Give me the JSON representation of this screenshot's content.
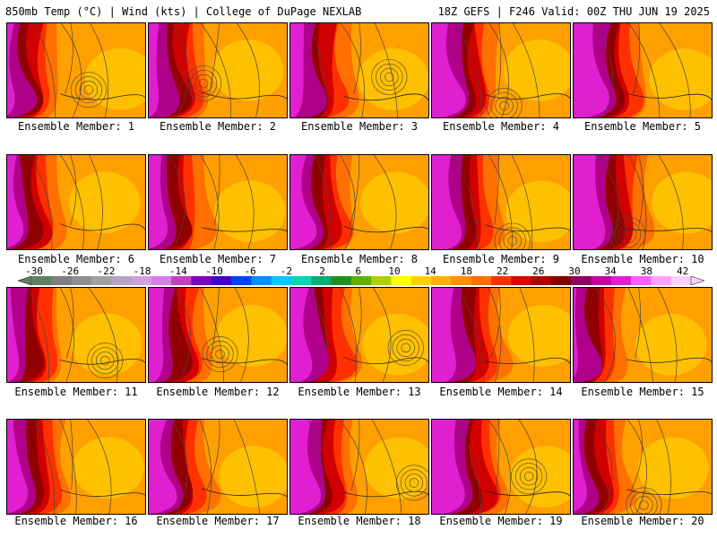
{
  "header": {
    "left_title": "850mb Temp (°C) | Wind (kts) | College of DuPage NEXLAB",
    "right_title": "18Z GEFS | F246 Valid: 00Z THU JUN 19 2025"
  },
  "panels": [
    {
      "label": "Ensemble Member: 1"
    },
    {
      "label": "Ensemble Member: 2"
    },
    {
      "label": "Ensemble Member: 3"
    },
    {
      "label": "Ensemble Member: 4"
    },
    {
      "label": "Ensemble Member: 5"
    },
    {
      "label": "Ensemble Member: 6"
    },
    {
      "label": "Ensemble Member: 7"
    },
    {
      "label": "Ensemble Member: 8"
    },
    {
      "label": "Ensemble Member: 9"
    },
    {
      "label": "Ensemble Member: 10"
    },
    {
      "label": "Ensemble Member: 11"
    },
    {
      "label": "Ensemble Member: 12"
    },
    {
      "label": "Ensemble Member: 13"
    },
    {
      "label": "Ensemble Member: 14"
    },
    {
      "label": "Ensemble Member: 15"
    },
    {
      "label": "Ensemble Member: 16"
    },
    {
      "label": "Ensemble Member: 17"
    },
    {
      "label": "Ensemble Member: 18"
    },
    {
      "label": "Ensemble Member: 19"
    },
    {
      "label": "Ensemble Member: 20"
    }
  ],
  "colorbar": {
    "labels": [
      "-30",
      "-26",
      "-22",
      "-18",
      "-14",
      "-10",
      "-6",
      "-2",
      "2",
      "6",
      "10",
      "14",
      "18",
      "22",
      "26",
      "30",
      "34",
      "38",
      "42"
    ],
    "colors": [
      "#5f7f5f",
      "#7f7f7f",
      "#8f8f8f",
      "#a0a0a0",
      "#b7a3c7",
      "#cf9fdf",
      "#d87fe7",
      "#c040c0",
      "#8000bf",
      "#4000d0",
      "#0040ff",
      "#0090ff",
      "#00c8ff",
      "#00d8b0",
      "#00b070",
      "#209020",
      "#60b000",
      "#b0d000",
      "#ffff00",
      "#ffd000",
      "#ffb000",
      "#ff9000",
      "#ff7000",
      "#ff3000",
      "#e00000",
      "#b00000",
      "#800000",
      "#900060",
      "#c000a0",
      "#e020d0",
      "#ff60ff",
      "#ffa0ff",
      "#ffd0ff"
    ]
  }
}
